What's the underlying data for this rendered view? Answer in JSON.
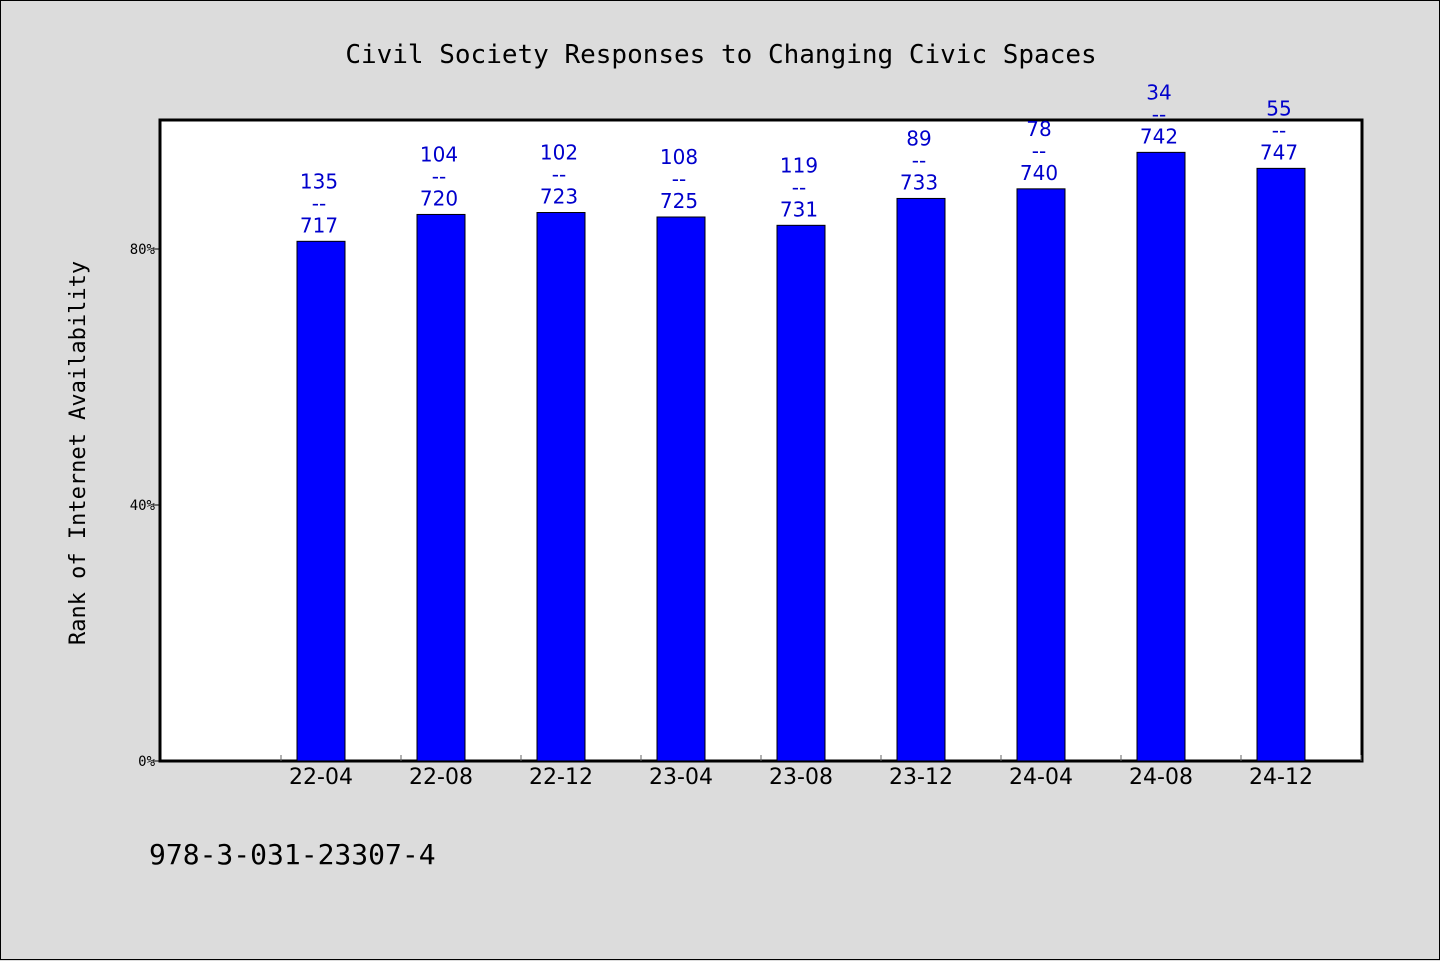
{
  "chart_data": {
    "type": "bar",
    "title": "Civil Society Responses to Changing Civic Spaces",
    "xlabel": "",
    "ylabel": "Rank of Internet Availability",
    "categories": [
      "22-04",
      "22-08",
      "22-12",
      "23-04",
      "23-08",
      "23-12",
      "24-04",
      "24-08",
      "24-12"
    ],
    "values": [
      81.2,
      85.4,
      85.7,
      85.0,
      83.7,
      87.9,
      89.4,
      95.1,
      92.6
    ],
    "value_unit": "%",
    "ylim": [
      0,
      100
    ],
    "yticks": [
      0,
      40,
      80
    ],
    "ytick_labels": [
      "0%",
      "40%",
      "80%"
    ],
    "bar_labels": [
      {
        "top": "135",
        "sep": "--",
        "bottom": "717"
      },
      {
        "top": "104",
        "sep": "--",
        "bottom": "720"
      },
      {
        "top": "102",
        "sep": "--",
        "bottom": "723"
      },
      {
        "top": "108",
        "sep": "--",
        "bottom": "725"
      },
      {
        "top": "119",
        "sep": "--",
        "bottom": "731"
      },
      {
        "top": "89",
        "sep": "--",
        "bottom": "733"
      },
      {
        "top": "78",
        "sep": "--",
        "bottom": "740"
      },
      {
        "top": "34",
        "sep": "--",
        "bottom": "742"
      },
      {
        "top": "55",
        "sep": "--",
        "bottom": "747"
      }
    ],
    "bar_color": "#0000ff",
    "label_color": "#0000cc",
    "plot_background": "#ffffff",
    "page_background": "#dcdcdc",
    "grid": false,
    "legend": "none"
  },
  "footnote": "978-3-031-23307-4"
}
